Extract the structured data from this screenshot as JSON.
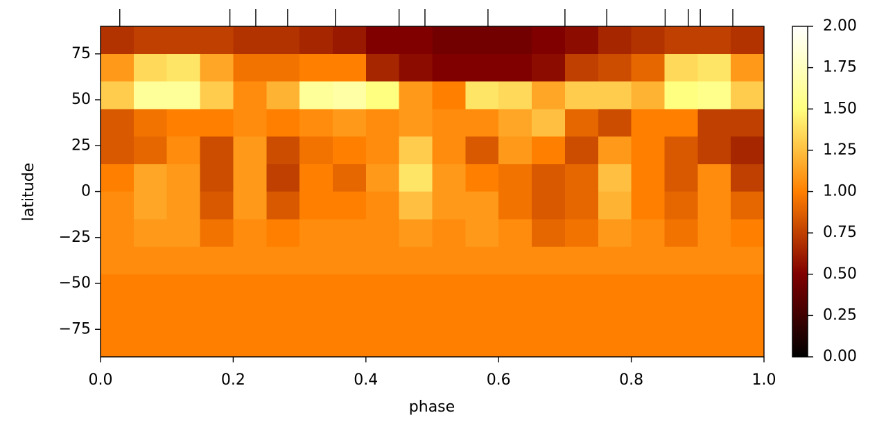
{
  "chart_data": {
    "type": "heatmap",
    "xlabel": "phase",
    "ylabel": "latitude",
    "colormap": "afmhot",
    "xlim": [
      0,
      1
    ],
    "ylim": [
      -90,
      90
    ],
    "xticks": [
      {
        "value": 0,
        "label": "0.0"
      },
      0.2,
      0.4,
      0.6,
      0.8,
      {
        "value": 1,
        "label": "1.0"
      }
    ],
    "yticks": [
      {
        "value": -75,
        "label": "−75"
      },
      {
        "value": -50,
        "label": "−50"
      },
      {
        "value": -25,
        "label": "−25"
      },
      0,
      25,
      50,
      75
    ],
    "clim": [
      0,
      2
    ],
    "cticks": [
      {
        "value": 0,
        "label": "0.00"
      },
      0.25,
      {
        "value": 0.5,
        "label": "0.50"
      },
      0.75,
      {
        "value": 1,
        "label": "1.00"
      },
      1.25,
      {
        "value": 1.5,
        "label": "1.50"
      },
      1.75,
      {
        "value": 2,
        "label": "2.00"
      }
    ],
    "observed_phases": [
      0.029,
      0.195,
      0.234,
      0.282,
      0.354,
      0.45,
      0.489,
      0.584,
      0.7,
      0.763,
      0.851,
      0.886,
      0.904,
      0.953
    ],
    "x_edges": [
      0,
      0.05,
      0.1,
      0.15,
      0.2,
      0.25,
      0.3,
      0.35,
      0.4,
      0.45,
      0.5,
      0.55,
      0.6,
      0.65,
      0.7,
      0.75,
      0.8,
      0.85,
      0.9,
      0.95,
      1
    ],
    "y_edges": [
      90,
      75,
      60,
      45,
      30,
      15,
      0,
      -15,
      -30,
      -45,
      -60,
      -75,
      -90
    ],
    "z": [
      [
        0.7,
        0.75,
        0.75,
        0.75,
        0.7,
        0.7,
        0.65,
        0.6,
        0.5,
        0.5,
        0.45,
        0.45,
        0.45,
        0.5,
        0.55,
        0.65,
        0.7,
        0.75,
        0.75,
        0.7
      ],
      [
        1.1,
        1.35,
        1.4,
        1.15,
        0.95,
        0.95,
        1.0,
        1.0,
        0.65,
        0.55,
        0.5,
        0.5,
        0.5,
        0.55,
        0.75,
        0.8,
        0.9,
        1.35,
        1.4,
        1.1
      ],
      [
        1.3,
        1.6,
        1.6,
        1.3,
        1.05,
        1.2,
        1.6,
        1.65,
        1.5,
        1.1,
        1.0,
        1.4,
        1.35,
        1.15,
        1.3,
        1.3,
        1.2,
        1.5,
        1.55,
        1.3
      ],
      [
        0.85,
        0.95,
        1.0,
        1.0,
        1.05,
        1.0,
        1.05,
        1.1,
        1.05,
        1.1,
        1.05,
        1.05,
        1.15,
        1.25,
        0.9,
        0.8,
        1.0,
        1.0,
        0.75,
        0.75
      ],
      [
        0.85,
        0.9,
        1.05,
        0.8,
        1.1,
        0.8,
        0.95,
        1.0,
        1.05,
        1.3,
        1.05,
        0.85,
        1.1,
        1.0,
        0.8,
        1.1,
        1.0,
        0.85,
        0.75,
        0.65
      ],
      [
        1.0,
        1.15,
        1.1,
        0.8,
        1.1,
        0.75,
        1.0,
        0.9,
        1.1,
        1.4,
        1.1,
        1.0,
        0.95,
        0.85,
        0.9,
        1.25,
        1.0,
        0.85,
        1.05,
        0.75
      ],
      [
        1.05,
        1.15,
        1.1,
        0.85,
        1.1,
        0.85,
        1.0,
        1.0,
        1.05,
        1.25,
        1.1,
        1.1,
        0.95,
        0.85,
        0.9,
        1.2,
        1.0,
        0.9,
        1.05,
        0.9
      ],
      [
        1.05,
        1.1,
        1.1,
        0.95,
        1.05,
        1.0,
        1.05,
        1.05,
        1.05,
        1.1,
        1.05,
        1.1,
        1.05,
        0.9,
        0.95,
        1.1,
        1.05,
        0.95,
        1.05,
        1.0
      ],
      [
        1.05,
        1.05,
        1.05,
        1.05,
        1.05,
        1.05,
        1.05,
        1.05,
        1.05,
        1.05,
        1.05,
        1.05,
        1.05,
        1.05,
        1.05,
        1.05,
        1.05,
        1.05,
        1.05,
        1.05
      ],
      [
        1,
        1,
        1,
        1,
        1,
        1,
        1,
        1,
        1,
        1,
        1,
        1,
        1,
        1,
        1,
        1,
        1,
        1,
        1,
        1
      ],
      [
        1,
        1,
        1,
        1,
        1,
        1,
        1,
        1,
        1,
        1,
        1,
        1,
        1,
        1,
        1,
        1,
        1,
        1,
        1,
        1
      ],
      [
        1,
        1,
        1,
        1,
        1,
        1,
        1,
        1,
        1,
        1,
        1,
        1,
        1,
        1,
        1,
        1,
        1,
        1,
        1,
        1
      ]
    ]
  }
}
